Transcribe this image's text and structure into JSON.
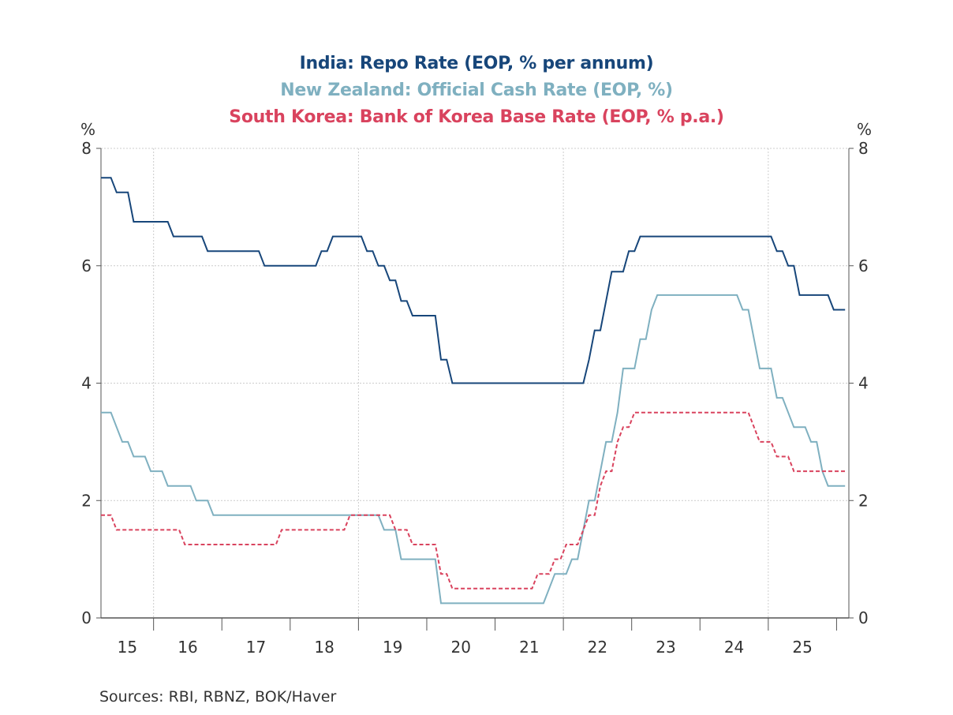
{
  "chart_data": {
    "type": "line",
    "titles": [
      "India: Repo Rate (EOP, % per annum)",
      "New Zealand: Official Cash Rate (EOP, %)",
      "South Korea: Bank of Korea Base Rate (EOP, % p.a.)"
    ],
    "ylabel_left": "%",
    "ylabel_right": "%",
    "ylim": [
      0,
      8
    ],
    "yticks": [
      "0",
      "2",
      "4",
      "6",
      "8"
    ],
    "xlim": [
      2015.23,
      2026.18
    ],
    "xticks": [
      "15",
      "16",
      "17",
      "18",
      "19",
      "20",
      "21",
      "22",
      "23",
      "24",
      "25"
    ],
    "grid": true,
    "source": "Sources:  RBI, RBNZ, BOK/Haver",
    "start": "2015-03",
    "end": "2026-02",
    "series": [
      {
        "name": "India: Repo Rate",
        "color": "#17467a",
        "dash": false,
        "changes": [
          [
            "2015-03",
            7.5
          ],
          [
            "2015-06",
            7.25
          ],
          [
            "2015-09",
            6.75
          ],
          [
            "2016-04",
            6.5
          ],
          [
            "2016-10",
            6.25
          ],
          [
            "2017-08",
            6.0
          ],
          [
            "2018-06",
            6.25
          ],
          [
            "2018-08",
            6.5
          ],
          [
            "2019-02",
            6.25
          ],
          [
            "2019-04",
            6.0
          ],
          [
            "2019-06",
            5.75
          ],
          [
            "2019-08",
            5.4
          ],
          [
            "2019-10",
            5.15
          ],
          [
            "2020-03",
            4.4
          ],
          [
            "2020-05",
            4.0
          ],
          [
            "2022-05",
            4.4
          ],
          [
            "2022-06",
            4.9
          ],
          [
            "2022-08",
            5.4
          ],
          [
            "2022-09",
            5.9
          ],
          [
            "2022-12",
            6.25
          ],
          [
            "2023-02",
            6.5
          ],
          [
            "2025-02",
            6.25
          ],
          [
            "2025-04",
            6.0
          ],
          [
            "2025-06",
            5.5
          ],
          [
            "2025-12",
            5.25
          ]
        ]
      },
      {
        "name": "New Zealand: Official Cash Rate",
        "color": "#7fb0c0",
        "dash": false,
        "changes": [
          [
            "2015-03",
            3.5
          ],
          [
            "2015-06",
            3.25
          ],
          [
            "2015-07",
            3.0
          ],
          [
            "2015-09",
            2.75
          ],
          [
            "2015-12",
            2.5
          ],
          [
            "2016-03",
            2.25
          ],
          [
            "2016-08",
            2.0
          ],
          [
            "2016-11",
            1.75
          ],
          [
            "2019-05",
            1.5
          ],
          [
            "2019-08",
            1.0
          ],
          [
            "2020-03",
            0.25
          ],
          [
            "2021-10",
            0.5
          ],
          [
            "2021-11",
            0.75
          ],
          [
            "2022-02",
            1.0
          ],
          [
            "2022-04",
            1.5
          ],
          [
            "2022-05",
            2.0
          ],
          [
            "2022-07",
            2.5
          ],
          [
            "2022-08",
            3.0
          ],
          [
            "2022-10",
            3.5
          ],
          [
            "2022-11",
            4.25
          ],
          [
            "2023-02",
            4.75
          ],
          [
            "2023-04",
            5.25
          ],
          [
            "2023-05",
            5.5
          ],
          [
            "2024-08",
            5.25
          ],
          [
            "2024-10",
            4.75
          ],
          [
            "2024-11",
            4.25
          ],
          [
            "2025-02",
            3.75
          ],
          [
            "2025-04",
            3.5
          ],
          [
            "2025-05",
            3.25
          ],
          [
            "2025-08",
            3.0
          ],
          [
            "2025-10",
            2.5
          ],
          [
            "2025-11",
            2.25
          ]
        ]
      },
      {
        "name": "South Korea: Bank of Korea Base Rate",
        "color": "#d9435e",
        "dash": true,
        "changes": [
          [
            "2015-03",
            1.75
          ],
          [
            "2015-06",
            1.5
          ],
          [
            "2016-06",
            1.25
          ],
          [
            "2017-11",
            1.5
          ],
          [
            "2018-11",
            1.75
          ],
          [
            "2019-07",
            1.5
          ],
          [
            "2019-10",
            1.25
          ],
          [
            "2020-03",
            0.75
          ],
          [
            "2020-05",
            0.5
          ],
          [
            "2021-08",
            0.75
          ],
          [
            "2021-11",
            1.0
          ],
          [
            "2022-01",
            1.25
          ],
          [
            "2022-04",
            1.5
          ],
          [
            "2022-05",
            1.75
          ],
          [
            "2022-07",
            2.25
          ],
          [
            "2022-08",
            2.5
          ],
          [
            "2022-10",
            3.0
          ],
          [
            "2022-11",
            3.25
          ],
          [
            "2023-01",
            3.5
          ],
          [
            "2024-10",
            3.25
          ],
          [
            "2024-11",
            3.0
          ],
          [
            "2025-02",
            2.75
          ],
          [
            "2025-05",
            2.5
          ]
        ]
      }
    ]
  }
}
